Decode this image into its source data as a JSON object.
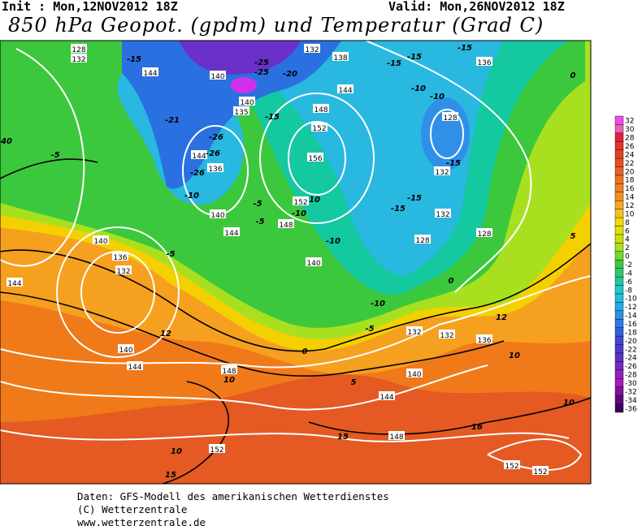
{
  "header": {
    "init": "Init : Mon,12NOV2012 18Z",
    "valid": "Valid: Mon,26NOV2012 18Z",
    "title": "850 hPa Geopot. (gpdm) und Temperatur (Grad C)"
  },
  "colorbar": {
    "values": [
      32,
      30,
      28,
      26,
      24,
      22,
      20,
      18,
      16,
      14,
      12,
      10,
      8,
      6,
      4,
      2,
      0,
      -2,
      -4,
      -6,
      -8,
      -10,
      -12,
      -14,
      -16,
      -18,
      -20,
      -22,
      -24,
      -26,
      -28,
      -30,
      -32,
      -34,
      -36
    ],
    "colors": [
      "#f04af0",
      "#f060b0",
      "#e02040",
      "#e83028",
      "#e84020",
      "#e85020",
      "#ec6020",
      "#f07020",
      "#f08020",
      "#f49020",
      "#f8a828",
      "#f8c020",
      "#f4d800",
      "#e0e000",
      "#c8e400",
      "#a8e020",
      "#70d830",
      "#40c840",
      "#30c870",
      "#20c8a0",
      "#20c8c8",
      "#20c0e0",
      "#28a8e8",
      "#3090e8",
      "#3078e8",
      "#3060e0",
      "#4048d8",
      "#5038d0",
      "#6030c8",
      "#7828c0",
      "#9020c0",
      "#a818b8",
      "#8010a0",
      "#600880",
      "#400060"
    ]
  },
  "map": {
    "labels": [
      "128",
      "132",
      "-15",
      "144",
      "140",
      "-25",
      "-25",
      "-20",
      "132",
      "138",
      "-15",
      "-15",
      "-15",
      "136",
      "0",
      "140",
      "135",
      "-15",
      "148",
      "144",
      "-10",
      "-10",
      "128",
      "-21",
      "-26",
      "152",
      "40",
      "-5",
      "156",
      "144",
      "-26",
      "-15",
      "132",
      "136",
      "-26",
      "-10",
      "140",
      "-5",
      "-10",
      "152",
      "-10",
      "148",
      "-5",
      "-15",
      "-15",
      "132",
      "144",
      "-10",
      "128",
      "128",
      "140",
      "-5",
      "136",
      "132",
      "140",
      "144",
      "0",
      "-10",
      "-5",
      "132",
      "132",
      "136",
      "12",
      "140",
      "144",
      "148",
      "10",
      "0",
      "10",
      "140",
      "5",
      "144",
      "10",
      "148",
      "16",
      "15",
      "152",
      "10",
      "152",
      "152",
      "15",
      "12",
      "5"
    ]
  },
  "footer": {
    "lines": [
      "Daten: GFS-Modell des amerikanischen Wetterdienstes",
      "(C) Wetterzentrale",
      "www.wetterzentrale.de"
    ]
  }
}
